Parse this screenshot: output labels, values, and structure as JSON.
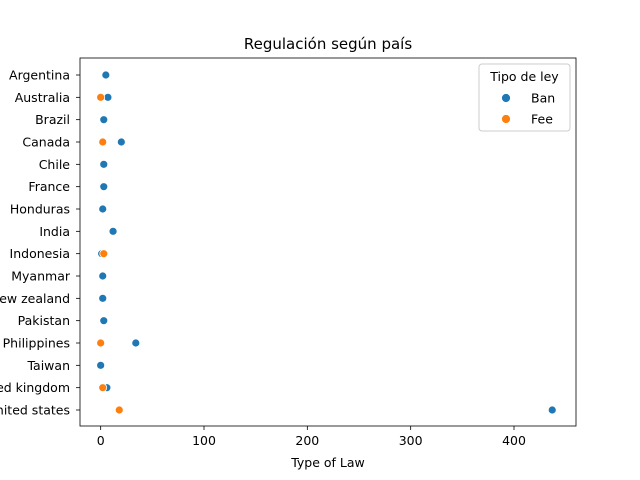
{
  "chart_data": {
    "type": "scatter",
    "title": "Regulación según país",
    "xlabel": "Type of Law",
    "ylabel": "",
    "xlim": [
      -20,
      460
    ],
    "xticks": [
      0,
      100,
      200,
      300,
      400
    ],
    "grid": false,
    "legend": {
      "title": "Tipo de ley",
      "placement": "top-right"
    },
    "categories": [
      "Argentina",
      "Australia",
      "Brazil",
      "Canada",
      "Chile",
      "France",
      "Honduras",
      "India",
      "Indonesia",
      "Myanmar",
      "New zealand",
      "Pakistan",
      "Philippines",
      "Taiwan",
      "United kingdom",
      "United states"
    ],
    "series": [
      {
        "name": "Ban",
        "color": "#1f77b4",
        "points": [
          {
            "category": "Argentina",
            "x": 5
          },
          {
            "category": "Australia",
            "x": 7
          },
          {
            "category": "Brazil",
            "x": 3
          },
          {
            "category": "Canada",
            "x": 20
          },
          {
            "category": "Chile",
            "x": 3
          },
          {
            "category": "France",
            "x": 3
          },
          {
            "category": "Honduras",
            "x": 2
          },
          {
            "category": "India",
            "x": 12
          },
          {
            "category": "Indonesia",
            "x": 1
          },
          {
            "category": "Myanmar",
            "x": 2
          },
          {
            "category": "New zealand",
            "x": 2
          },
          {
            "category": "Pakistan",
            "x": 3
          },
          {
            "category": "Philippines",
            "x": 34
          },
          {
            "category": "Taiwan",
            "x": 0
          },
          {
            "category": "United kingdom",
            "x": 6
          },
          {
            "category": "United states",
            "x": 437
          }
        ]
      },
      {
        "name": "Fee",
        "color": "#ff7f0e",
        "points": [
          {
            "category": "Australia",
            "x": 0
          },
          {
            "category": "Canada",
            "x": 2
          },
          {
            "category": "Indonesia",
            "x": 3
          },
          {
            "category": "Philippines",
            "x": 0
          },
          {
            "category": "United kingdom",
            "x": 2
          },
          {
            "category": "United states",
            "x": 18
          }
        ]
      }
    ]
  }
}
